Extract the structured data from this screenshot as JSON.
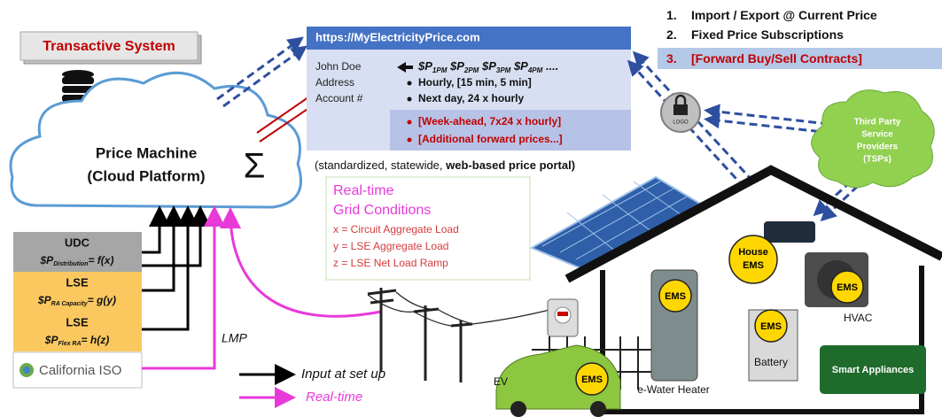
{
  "transactive_system": "Transactive System",
  "price_machine": {
    "title": "Price Machine",
    "subtitle": "(Cloud Platform)",
    "symbol": "Σ"
  },
  "portal": {
    "url": "https://MyElectricityPrice.com",
    "fields": [
      "John Doe",
      "Address",
      "Account #"
    ],
    "prices": [
      {
        "symbol": "$P",
        "sub": "1PM"
      },
      {
        "symbol": "$P",
        "sub": "2PM"
      },
      {
        "symbol": "$P",
        "sub": "3PM"
      },
      {
        "symbol": "$P",
        "sub": "4PM"
      }
    ],
    "prices_more": "....",
    "items": [
      "Hourly, [15 min, 5 min]",
      "Next day, 24 x hourly"
    ],
    "forward_items": [
      "[Week-ahead, 7x24 x hourly]",
      "[Additional forward prices...]"
    ],
    "caption": "(standardized, statewide, ",
    "caption_bold": "web-based price portal)"
  },
  "options": [
    {
      "number": "1.",
      "text": "Import / Export @ Current Price"
    },
    {
      "number": "2.",
      "text": "Fixed Price Subscriptions"
    },
    {
      "number": "3.",
      "text": "[Forward Buy/Sell Contracts]"
    }
  ],
  "lock_label": "LOGO",
  "tsp": [
    "Third Party",
    "Service",
    "Providers",
    "(TSPs)"
  ],
  "grid_conditions": {
    "title": [
      "Real-time",
      "Grid Conditions"
    ],
    "lines": [
      "x = Circuit Aggregate Load",
      "y = LSE Aggregate Load",
      "z = LSE Net Load Ramp"
    ]
  },
  "price_stack": [
    {
      "label": "UDC",
      "formula": {
        "symbol": "$P",
        "sub": "Distribution",
        "rest": "= f(x)"
      }
    },
    {
      "label": "LSE",
      "formula": {
        "symbol": "$P",
        "sub": "RA Capacity",
        "rest": "= g(y)"
      }
    },
    {
      "label": "LSE",
      "formula": {
        "symbol": "$P",
        "sub": "Flex RA",
        "rest": "= h(z)"
      }
    }
  ],
  "iso": "California ISO",
  "lmp": "LMP",
  "legend": [
    "Input at set up",
    "Real-time"
  ],
  "house": {
    "house_ems": [
      "House",
      "EMS"
    ],
    "ems_labels": [
      "EMS",
      "EMS",
      "EMS",
      "EMS"
    ],
    "hvac": "HVAC",
    "battery": "Battery",
    "water_heater": "e-Water Heater",
    "ev": "EV",
    "smart_appliances": "Smart Appliances"
  }
}
